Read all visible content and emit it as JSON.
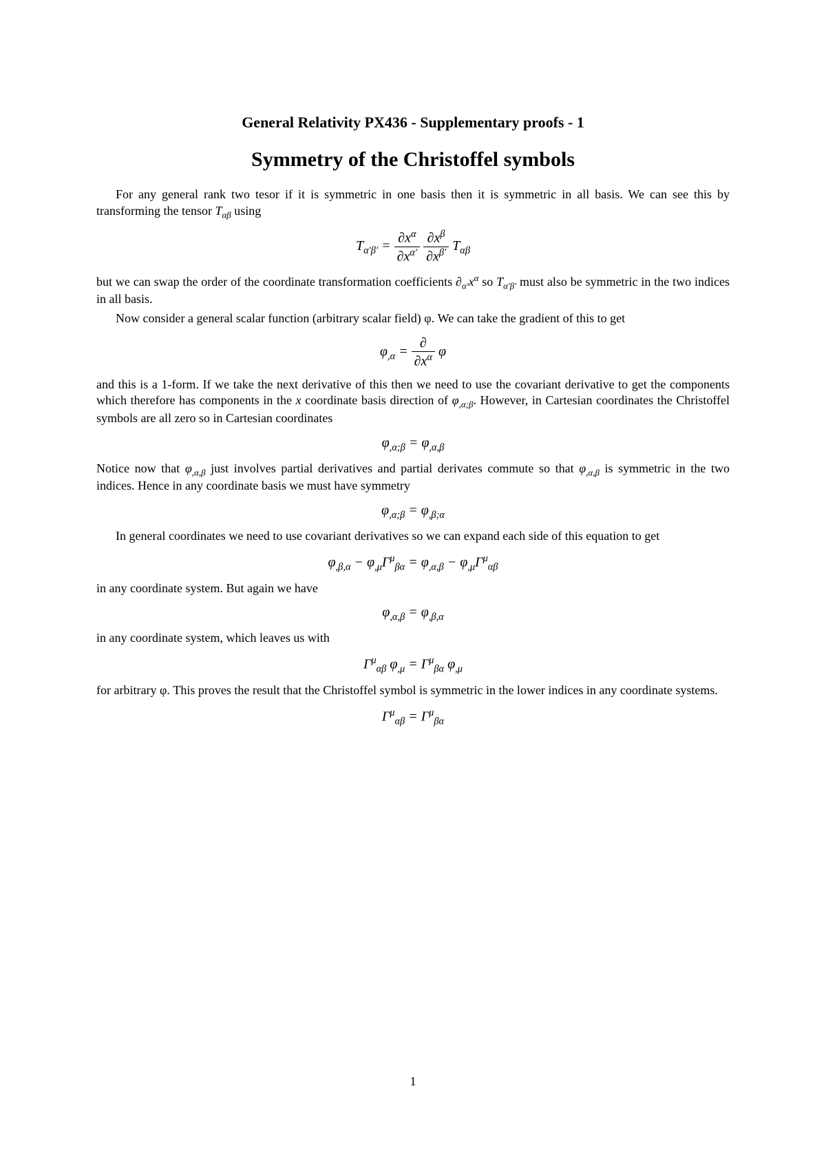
{
  "header": "General Relativity PX436 - Supplementary proofs - 1",
  "title": "Symmetry of the Christoffel symbols",
  "para1a": "For any general rank two tesor if it is symmetric in one basis then it is symmetric in all basis. We can see this by transforming the tensor ",
  "para1b": " using",
  "para2a": "but we can swap the order of the coordinate transformation coefficients ",
  "para2b": " so ",
  "para2c": " must also be symmetric in the two indices in all basis.",
  "para3": "Now consider a general scalar function (arbitrary scalar field) φ. We can take the gradient of this to get",
  "para4a": "and this is a 1-form. If we take the next derivative of this then we need to use the covariant derivative to get the components which therefore has components in the ",
  "para4b": " coordinate basis direction of ",
  "para4c": ". However, in Cartesian coordinates the Christoffel symbols are all zero so in Cartesian coordinates",
  "para5a": "Notice now that ",
  "para5b": " just involves partial derivatives and partial derivates commute so that ",
  "para5c": " is symmetric in the two indices. Hence in any coordinate basis we must have symmetry",
  "para6": "In general coordinates we need to use covariant derivatives so we can expand each side of this equation to get",
  "para7": "in any coordinate system. But again we have",
  "para8": "in any coordinate system, which leaves us with",
  "para9": "for arbitrary φ. This proves the result that the Christoffel symbol is symmetric in the lower indices in any coordinate systems.",
  "pagenum": "1"
}
